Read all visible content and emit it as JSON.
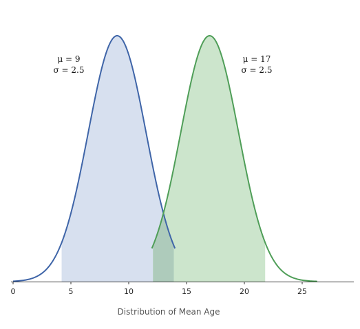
{
  "chart_data": {
    "type": "area",
    "xlabel": "Distribution of Mean Age",
    "ylabel": "",
    "title": "",
    "xlim": [
      0,
      29.5
    ],
    "xticks": [
      0,
      5,
      10,
      15,
      20,
      25
    ],
    "grid": false,
    "legend": "none",
    "series": [
      {
        "mu": 9,
        "sigma": 2.5,
        "curve_range": [
          0,
          14
        ],
        "shade_range": [
          4.2,
          13.9
        ],
        "line_color": "#3f65a8",
        "fill_color": "#d7e0ef",
        "annotation": {
          "mu_text": "μ = 9",
          "sigma_text": "σ = 2.5"
        }
      },
      {
        "mu": 17,
        "sigma": 2.5,
        "curve_range": [
          12,
          26.3
        ],
        "shade_range": [
          12.1,
          21.8
        ],
        "line_color": "#4f9e58",
        "fill_color": "#cce5cc",
        "annotation": {
          "mu_text": "μ = 17",
          "sigma_text": "σ = 2.5"
        }
      }
    ],
    "overlap_fill_color": "#aecbbb"
  }
}
